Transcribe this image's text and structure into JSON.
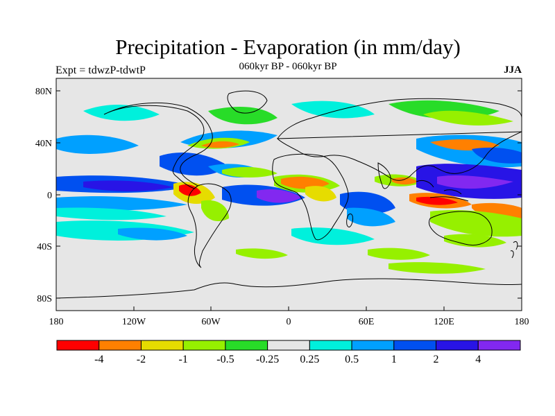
{
  "title": "Precipitation - Evaporation (in mm/day)",
  "subtitle": "060kyr BP - 060kyr BP",
  "left_string": "Expt = tdwzP-tdwtP",
  "right_string": "JJA",
  "map": {
    "lat_ticks": [
      "80N",
      "40N",
      "0",
      "40S",
      "80S"
    ],
    "lon_ticks": [
      "180",
      "120W",
      "60W",
      "0",
      "60E",
      "120E",
      "180"
    ],
    "background_color": "#e6e6e6",
    "coastline_color": "#000000"
  },
  "colorbar": {
    "colors": [
      "#ff0000",
      "#ff8000",
      "#e6dc00",
      "#96f000",
      "#28dc28",
      "#e6e6e6",
      "#00f0dc",
      "#00a0ff",
      "#0050f0",
      "#2814e6",
      "#8228f0"
    ],
    "labels": [
      "-4",
      "-2",
      "-1",
      "-0.5",
      "-0.25",
      "0.25",
      "0.5",
      "1",
      "2",
      "4"
    ]
  }
}
